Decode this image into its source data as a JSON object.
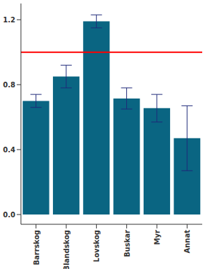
{
  "chart_data": {
    "type": "bar",
    "categories": [
      "Barrskog",
      "Blandskog",
      "Lovskog",
      "Buskar",
      "Myr",
      "Annat"
    ],
    "values": [
      0.7,
      0.85,
      1.19,
      0.715,
      0.655,
      0.47
    ],
    "errors": [
      0.04,
      0.07,
      0.04,
      0.065,
      0.085,
      0.2
    ],
    "color": "#0a6582",
    "error_color": "#1f2a7a",
    "ylim": [
      -0.06,
      1.3
    ],
    "yticks": [
      {
        "value": 0,
        "label": "0.0"
      },
      0.4,
      0.8,
      1.2
    ],
    "grid": false,
    "reference_lines": [
      {
        "value": 1,
        "color": "#ff0000"
      }
    ]
  }
}
